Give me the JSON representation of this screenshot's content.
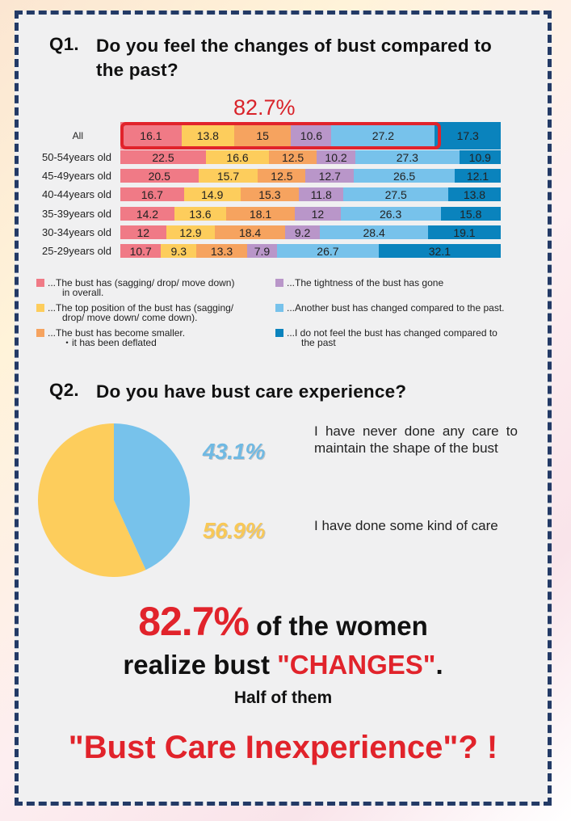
{
  "q1": {
    "number": "Q1.",
    "title": "Do you feel the changes of bust compared to the past?",
    "highlight_label": "82.7%"
  },
  "q2": {
    "number": "Q2.",
    "title": "Do you have bust care experience?"
  },
  "chart_data": [
    {
      "type": "bar",
      "orientation": "horizontal-stacked-100",
      "title": "Q1. Do you feel the changes of bust compared to the past?",
      "categories": [
        "All",
        "50-54years old",
        "45-49years old",
        "40-44years old",
        "35-39years old",
        "30-34years old",
        "25-29years old"
      ],
      "series": [
        {
          "name": "...The bust has (sagging/ drop/ move down) in overall.",
          "color": "#f07a86",
          "values": [
            16.1,
            22.5,
            20.5,
            16.7,
            14.2,
            12,
            10.7
          ]
        },
        {
          "name": "...The top position of the bust has (sagging/ drop/ move down/ come down).",
          "color": "#fdcd5c",
          "values": [
            13.8,
            16.6,
            15.7,
            14.9,
            13.6,
            12.9,
            9.3
          ]
        },
        {
          "name": "...The bust has become smaller. ・it has been deflated",
          "color": "#f6a35f",
          "values": [
            15,
            12.5,
            12.5,
            15.3,
            18.1,
            18.4,
            13.3
          ]
        },
        {
          "name": "...The tightness of the bust has gone",
          "color": "#b996c9",
          "values": [
            10.6,
            10.2,
            12.7,
            11.8,
            12,
            9.2,
            7.9
          ]
        },
        {
          "name": "...Another bust has changed compared to the past.",
          "color": "#77c2eb",
          "values": [
            27.2,
            27.3,
            26.5,
            27.5,
            26.3,
            28.4,
            26.7
          ]
        },
        {
          "name": "...I do not feel the bust has changed compared to the past",
          "color": "#0a83bd",
          "values": [
            17.3,
            10.9,
            12.1,
            13.8,
            15.8,
            19.1,
            32.1
          ]
        }
      ],
      "annotation": "82.7%",
      "legend_position": "bottom"
    },
    {
      "type": "pie",
      "title": "Q2. Do you have bust care experience?",
      "slices": [
        {
          "label": "I have never done any care to maintain the shape of the bust",
          "value": 43.1,
          "display": "43.1%",
          "color": "#77c2eb"
        },
        {
          "label": "I have done some kind of care",
          "value": 56.9,
          "display": "56.9%",
          "color": "#fdcd5c"
        }
      ]
    }
  ],
  "legend": [
    [
      "...The bust has (sagging/ drop/ move down)",
      "in overall."
    ],
    [
      "...The top position of the bust has (sagging/",
      "drop/ move down/ come down)."
    ],
    [
      "...The bust has become smaller.",
      "・it has been deflated"
    ],
    [
      "...The tightness of the bust has gone"
    ],
    [
      "...Another bust has changed compared to the past."
    ],
    [
      "...I do not feel the bust has changed compared to",
      "the past"
    ]
  ],
  "conclusion": {
    "line1_highlight": "82.7%",
    "line1_rest": " of the women",
    "line2_start": "realize bust ",
    "line2_highlight": "\"CHANGES\"",
    "line2_end": ".",
    "line3": "Half of them",
    "line4": "\"Bust Care Inexperience\"? !"
  },
  "colors": {
    "accent_red": "#e1232b",
    "border_navy": "#233a66",
    "card_bg": "#f0f0f1"
  }
}
